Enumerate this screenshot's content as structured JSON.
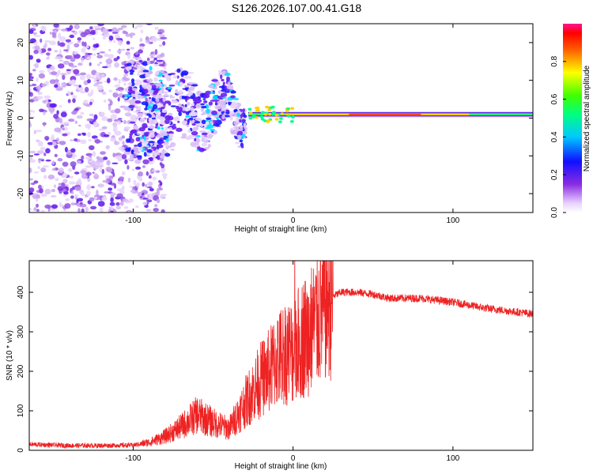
{
  "title": "S126.2026.107.00.41.G18",
  "chart_data": [
    {
      "type": "heatmap",
      "name": "spectrogram",
      "xlabel": "Height of straight line (km)",
      "ylabel": "Frequency (Hz)",
      "xlim": [
        -165,
        150
      ],
      "ylim": [
        -25,
        25
      ],
      "xticks": [
        -100,
        0,
        100
      ],
      "yticks": [
        -20,
        -10,
        0,
        10,
        20
      ],
      "colorbar": {
        "label": "Normalized spectral amplitude",
        "range": [
          0,
          1
        ],
        "ticks": [
          0.0,
          0.2,
          0.4,
          0.6,
          0.8
        ]
      },
      "description_values": {
        "carrier_frequency_hz": 1,
        "carrier_start_km": -30,
        "noise_region_km": [
          -165,
          -100
        ],
        "fluctuation_region_km": [
          -100,
          -30
        ]
      }
    },
    {
      "type": "line",
      "name": "snr",
      "xlabel": "Height of straight line (km)",
      "ylabel": "SNR (10 * v/v)",
      "xlim": [
        -165,
        150
      ],
      "ylim": [
        0,
        480
      ],
      "xticks": [
        -100,
        0,
        100
      ],
      "yticks": [
        0,
        100,
        200,
        300,
        400
      ],
      "color": "#ee2222",
      "series": [
        {
          "name": "SNR",
          "x": [
            -165,
            -140,
            -120,
            -100,
            -90,
            -80,
            -70,
            -60,
            -50,
            -40,
            -30,
            -25,
            -20,
            -15,
            -10,
            -5,
            0,
            5,
            10,
            15,
            20,
            25,
            30,
            40,
            50,
            60,
            80,
            100,
            120,
            140,
            150
          ],
          "y": [
            15,
            12,
            12,
            13,
            20,
            35,
            60,
            90,
            70,
            55,
            120,
            150,
            180,
            200,
            230,
            250,
            250,
            280,
            300,
            330,
            370,
            390,
            400,
            400,
            395,
            385,
            385,
            375,
            360,
            350,
            345
          ]
        }
      ]
    }
  ]
}
